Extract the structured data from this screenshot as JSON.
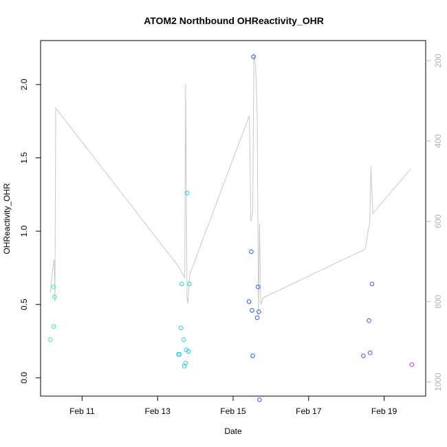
{
  "chart_data": {
    "type": "scatter",
    "title": "ATOM2 Northbound OHReactivity_OHR",
    "xlabel": "Date",
    "ylabel": "OHReactivity_OHR",
    "x_ticks": [
      "Feb 11",
      "Feb 13",
      "Feb 15",
      "Feb 17",
      "Feb 19"
    ],
    "x_tick_values": [
      11,
      13,
      15,
      17,
      19
    ],
    "xlim": [
      9.9,
      20.1
    ],
    "ylim": [
      -0.125,
      2.3
    ],
    "y_ticks": [
      "0.0",
      "0.5",
      "1.0",
      "1.5",
      "2.0"
    ],
    "y_tick_values": [
      0.0,
      0.5,
      1.0,
      1.5,
      2.0
    ],
    "right_axis": {
      "ticks": [
        "200",
        "400",
        "600",
        "800",
        "1000"
      ],
      "tick_values": [
        200,
        400,
        600,
        800,
        1000
      ],
      "ylim": [
        1035,
        150
      ],
      "color": "#b3b3b3"
    },
    "grid": false,
    "line_series": {
      "axis": "right",
      "color": "#c8c8c8",
      "x": [
        10.16,
        10.22,
        10.26,
        10.28,
        10.3,
        13.55,
        13.72,
        13.74,
        13.78,
        13.8,
        13.85,
        15.43,
        15.47,
        15.52,
        15.55,
        15.6,
        15.64,
        15.67,
        15.7,
        15.73,
        15.8,
        18.5,
        18.62,
        18.65,
        18.7,
        19.7
      ],
      "y": [
        776,
        720,
        695,
        800,
        318,
        712,
        740,
        258,
        790,
        805,
        732,
        337,
        600,
        580,
        180,
        220,
        343,
        830,
        605,
        808,
        790,
        669,
        600,
        464,
        580,
        470
      ]
    },
    "points": [
      {
        "x": 10.16,
        "y": 0.26,
        "color": "#35e6ad"
      },
      {
        "x": 10.24,
        "y": 0.62,
        "color": "#37ebbf"
      },
      {
        "x": 10.25,
        "y": 0.35,
        "color": "#35e6ad"
      },
      {
        "x": 10.27,
        "y": 0.55,
        "color": "#35e6ad"
      },
      {
        "x": 13.55,
        "y": 0.16,
        "color": "#2cc6e3"
      },
      {
        "x": 13.58,
        "y": 0.16,
        "color": "#2cc6e3"
      },
      {
        "x": 13.62,
        "y": 0.34,
        "color": "#2cc6e3"
      },
      {
        "x": 13.64,
        "y": 0.64,
        "color": "#2cc6e3"
      },
      {
        "x": 13.69,
        "y": 0.26,
        "color": "#2cc6e3"
      },
      {
        "x": 13.71,
        "y": 0.08,
        "color": "#2cc6e3"
      },
      {
        "x": 13.74,
        "y": 0.1,
        "color": "#2cc6e3"
      },
      {
        "x": 13.76,
        "y": 0.19,
        "color": "#2cc6e3"
      },
      {
        "x": 13.78,
        "y": 1.26,
        "color": "#2cc6e3"
      },
      {
        "x": 13.82,
        "y": 0.18,
        "color": "#2cc6e3"
      },
      {
        "x": 13.84,
        "y": 0.64,
        "color": "#2cc6e3"
      },
      {
        "x": 15.42,
        "y": 0.52,
        "color": "#2b5ce6"
      },
      {
        "x": 15.48,
        "y": 0.86,
        "color": "#2b5ce6"
      },
      {
        "x": 15.5,
        "y": 0.46,
        "color": "#2b5ce6"
      },
      {
        "x": 15.52,
        "y": 0.15,
        "color": "#2b5ce6"
      },
      {
        "x": 15.54,
        "y": 2.19,
        "color": "#2b5ce6"
      },
      {
        "x": 15.64,
        "y": 0.41,
        "color": "#2b5ce6"
      },
      {
        "x": 15.66,
        "y": 0.62,
        "color": "#2b5ce6"
      },
      {
        "x": 15.68,
        "y": 0.45,
        "color": "#2b5ce6"
      },
      {
        "x": 15.7,
        "y": -0.15,
        "color": "#2b5ce6"
      },
      {
        "x": 18.45,
        "y": 0.15,
        "color": "#7a3fe6"
      },
      {
        "x": 18.6,
        "y": 0.39,
        "color": "#7a3fe6"
      },
      {
        "x": 18.63,
        "y": 0.17,
        "color": "#7a3fe6"
      },
      {
        "x": 18.68,
        "y": 0.64,
        "color": "#7a3fe6"
      },
      {
        "x": 19.73,
        "y": 0.09,
        "color": "#c93ce6"
      }
    ]
  }
}
